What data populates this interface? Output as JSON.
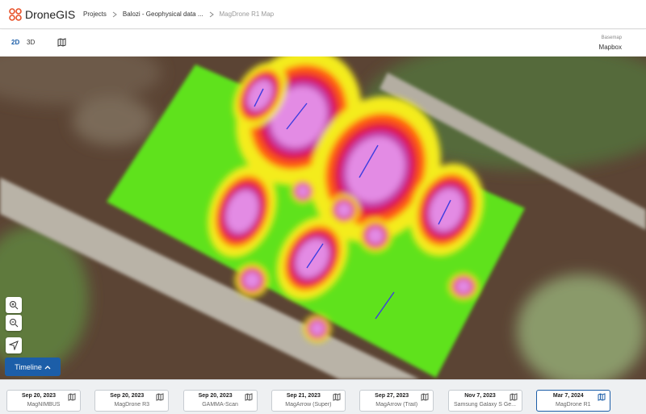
{
  "header": {
    "logo": "DroneGIS",
    "breadcrumbs": [
      "Projects",
      "Balozi - Geophysical data ...",
      "MagDrone R1 Map"
    ]
  },
  "toolbar": {
    "view_2d": "2D",
    "view_3d": "3D",
    "basemap_label": "Basemap",
    "basemap_value": "Mapbox"
  },
  "timeline_button": "Timeline",
  "timeline": [
    {
      "date": "Sep 20, 2023",
      "name": "MagNIMBUS"
    },
    {
      "date": "Sep 20, 2023",
      "name": "MagDrone R3"
    },
    {
      "date": "Sep 20, 2023",
      "name": "GAMMA-Scan"
    },
    {
      "date": "Sep 21, 2023",
      "name": "MagArrow (Super)"
    },
    {
      "date": "Sep 27, 2023",
      "name": "MagArrow (Trail)"
    },
    {
      "date": "Nov 7, 2023",
      "name": "Samsung Galaxy S Ge..."
    },
    {
      "date": "Mar 7, 2024",
      "name": "MagDrone R1"
    }
  ]
}
